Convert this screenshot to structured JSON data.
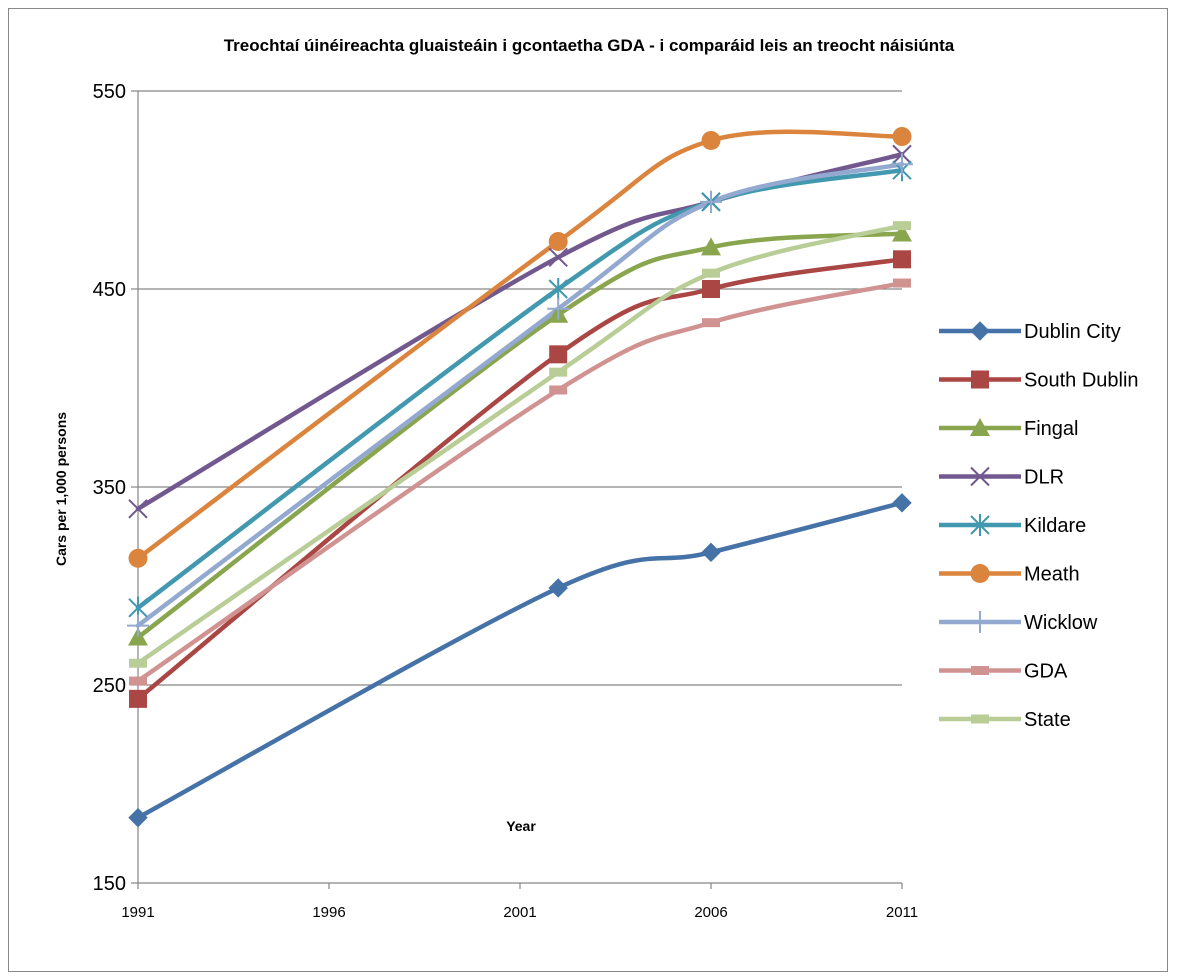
{
  "chart_data": {
    "type": "line",
    "title": "Treochtaí úinéireachta gluaisteáin i gcontaetha GDA  - i comparáid leis an treocht náisiúnta",
    "xlabel": "Year",
    "ylabel": "Cars per 1,000 persons",
    "xlim": [
      1991,
      2011
    ],
    "ylim": [
      150,
      550
    ],
    "x_ticks": [
      1991,
      1996,
      2001,
      2006,
      2011
    ],
    "y_ticks": [
      150,
      250,
      350,
      450,
      550
    ],
    "grid": "horizontal",
    "legend_position": "right",
    "smoothed": true,
    "x": [
      1991,
      2002,
      2006,
      2011
    ],
    "series": [
      {
        "name": "Dublin City",
        "values": [
          183,
          299,
          317,
          342
        ],
        "color": "#4572A7",
        "marker": "diamond"
      },
      {
        "name": "South Dublin",
        "values": [
          243,
          417,
          450,
          465
        ],
        "color": "#AA4643",
        "marker": "square"
      },
      {
        "name": "Fingal",
        "values": [
          274,
          437,
          471,
          478
        ],
        "color": "#89A54E",
        "marker": "triangle"
      },
      {
        "name": "DLR",
        "values": [
          339,
          466,
          494,
          518
        ],
        "color": "#71588F",
        "marker": "x"
      },
      {
        "name": "Kildare",
        "values": [
          289,
          450,
          494,
          510
        ],
        "color": "#4198AF",
        "marker": "asterisk"
      },
      {
        "name": "Meath",
        "values": [
          314,
          474,
          525,
          527
        ],
        "color": "#DB843D",
        "marker": "circle"
      },
      {
        "name": "Wicklow",
        "values": [
          280,
          440,
          494,
          513
        ],
        "color": "#93A9CF",
        "marker": "plus"
      },
      {
        "name": "GDA",
        "values": [
          252,
          399,
          433,
          453
        ],
        "color": "#D19392",
        "marker": "dash"
      },
      {
        "name": "State",
        "values": [
          261,
          408,
          458,
          482
        ],
        "color": "#B9CD96",
        "marker": "dash"
      }
    ]
  }
}
